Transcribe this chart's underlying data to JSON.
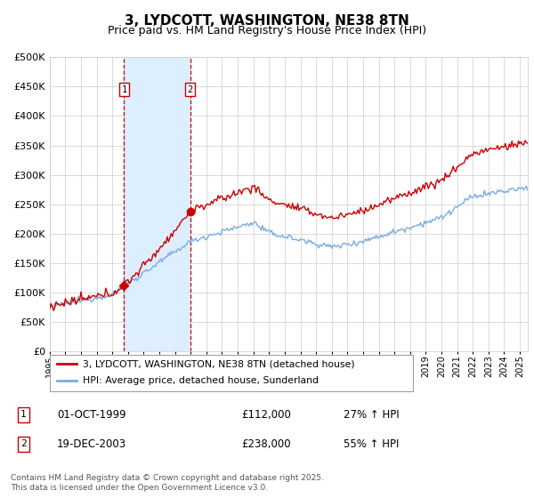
{
  "title": "3, LYDCOTT, WASHINGTON, NE38 8TN",
  "subtitle": "Price paid vs. HM Land Registry's House Price Index (HPI)",
  "ylim": [
    0,
    500000
  ],
  "xlim_start": 1995.0,
  "xlim_end": 2025.5,
  "sale1_date": 1999.75,
  "sale1_price": 112000,
  "sale1_label": "1",
  "sale1_text": "01-OCT-1999",
  "sale1_price_text": "£112,000",
  "sale1_hpi_text": "27% ↑ HPI",
  "sale2_date": 2003.96,
  "sale2_price": 238000,
  "sale2_label": "2",
  "sale2_text": "19-DEC-2003",
  "sale2_price_text": "£238,000",
  "sale2_hpi_text": "55% ↑ HPI",
  "legend_line1": "3, LYDCOTT, WASHINGTON, NE38 8TN (detached house)",
  "legend_line2": "HPI: Average price, detached house, Sunderland",
  "footer": "Contains HM Land Registry data © Crown copyright and database right 2025.\nThis data is licensed under the Open Government Licence v3.0.",
  "line_color_red": "#cc0000",
  "line_color_blue": "#7aade0",
  "shade_color": "#ddeeff",
  "marker_box_color": "#cc0000",
  "background_color": "#ffffff",
  "grid_color": "#cccccc"
}
